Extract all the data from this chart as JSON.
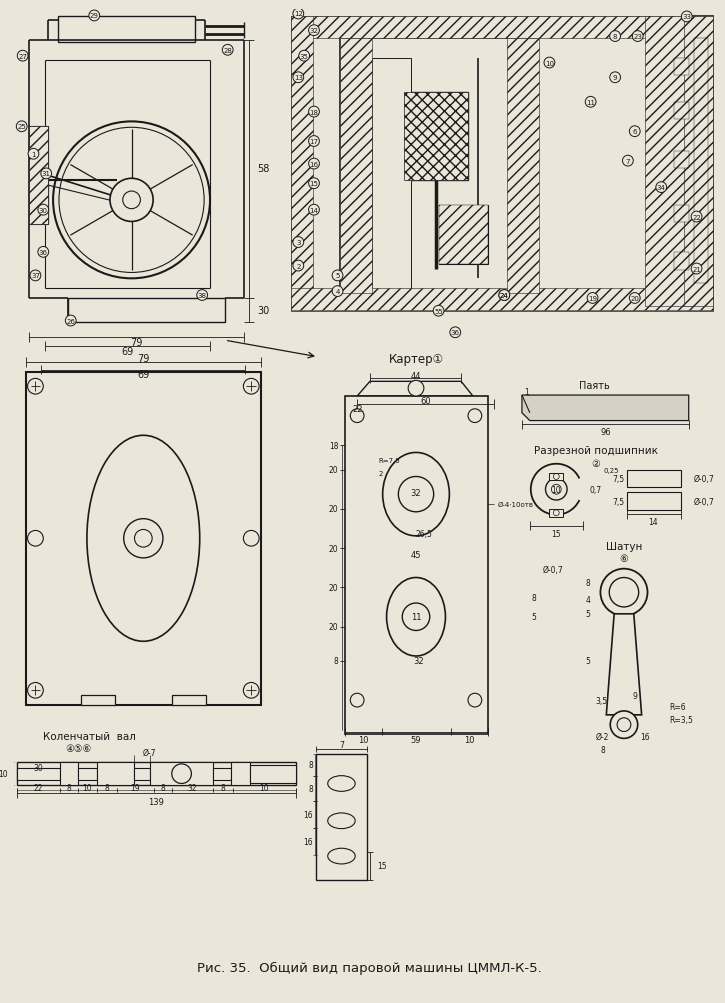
{
  "title": "Рис. 35.  Общий вид паровой машины ЦММЛ-К-5.",
  "bg_color": "#eae6da",
  "fig_width": 7.25,
  "fig_height": 10.04,
  "dpi": 100,
  "line_color": "#1a1a1a",
  "text_color": "#1a1a1a",
  "labels": {
    "carter": "Картер①",
    "kolen_val": "Коленчатый  вал",
    "kolen_val2": "④⑤⑥",
    "razreznoj": "Разрезной подшипник",
    "razreznoj2": "②",
    "shaton": "Шатун",
    "shaton2": "⑥",
    "payt": "Паять"
  },
  "footer_text": "Рис. 35.  Общий вид паровой машины ЦММЛ-К-5."
}
